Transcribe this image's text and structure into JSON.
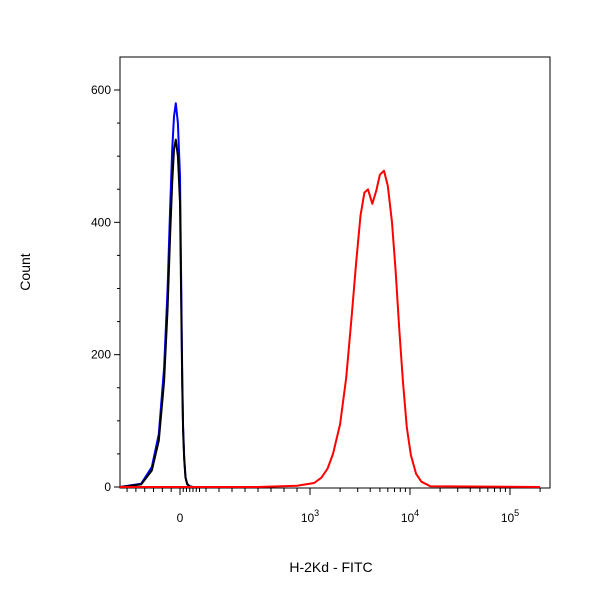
{
  "chart_data": {
    "type": "line",
    "title": "",
    "xlabel": "H-2Kd - FITC",
    "ylabel": "Count",
    "x_scale": "biexponential",
    "xlim": [
      -300,
      200000
    ],
    "ylim": [
      -10,
      640
    ],
    "x_ticks": [
      {
        "value": 0,
        "base": "0",
        "exp": ""
      },
      {
        "value": 1000,
        "base": "10",
        "exp": "3"
      },
      {
        "value": 10000,
        "base": "10",
        "exp": "4"
      },
      {
        "value": 100000,
        "base": "10",
        "exp": "5"
      }
    ],
    "y_ticks": [
      {
        "value": 0,
        "label": "0"
      },
      {
        "value": 200,
        "label": "200"
      },
      {
        "value": 400,
        "label": "400"
      },
      {
        "value": 600,
        "label": "600"
      }
    ],
    "grid": false,
    "legend": "none",
    "series": [
      {
        "color": "#0000ff",
        "x": [
          -170,
          -110,
          -80,
          -60,
          -45,
          -35,
          -28,
          -22,
          -17,
          -12,
          -6,
          0,
          6,
          12,
          18,
          24,
          32,
          42,
          55,
          75,
          100
        ],
        "y": [
          0,
          5,
          30,
          80,
          180,
          300,
          420,
          510,
          560,
          580,
          550,
          470,
          360,
          250,
          160,
          90,
          45,
          15,
          5,
          1,
          0
        ]
      },
      {
        "color": "#000000",
        "x": [
          -170,
          -110,
          -80,
          -60,
          -45,
          -35,
          -28,
          -22,
          -17,
          -12,
          -6,
          0,
          6,
          12,
          18,
          24,
          32,
          42,
          55,
          75,
          100
        ],
        "y": [
          0,
          4,
          25,
          70,
          160,
          270,
          380,
          460,
          510,
          525,
          500,
          430,
          330,
          230,
          150,
          85,
          42,
          14,
          4,
          1,
          0
        ]
      },
      {
        "color": "#ff0000",
        "x": [
          -300,
          600,
          900,
          1100,
          1300,
          1500,
          1700,
          2000,
          2300,
          2600,
          2900,
          3200,
          3500,
          3800,
          4200,
          4600,
          5000,
          5500,
          6000,
          6600,
          7200,
          7800,
          8500,
          9300,
          10200,
          11500,
          13000,
          16000,
          200000
        ],
        "y": [
          0,
          0,
          2,
          6,
          14,
          28,
          50,
          95,
          165,
          255,
          340,
          410,
          445,
          450,
          428,
          448,
          472,
          478,
          455,
          400,
          325,
          240,
          160,
          90,
          48,
          20,
          8,
          1,
          0
        ]
      }
    ]
  }
}
